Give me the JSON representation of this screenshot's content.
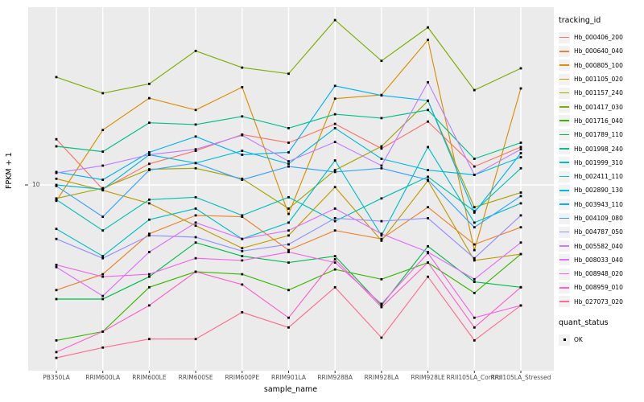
{
  "chart_data": {
    "type": "line",
    "title": "",
    "xlabel": "sample_name",
    "ylabel": "FPKM + 1",
    "x_categories": [
      "PB350LA",
      "RRIM600LA",
      "RRIM600LE",
      "RRIM600SE",
      "RRIM600PE",
      "RRIM901LA",
      "RRIM928BA",
      "RRIM928LA",
      "RRIM928LE",
      "RRII105LA_Control",
      "RRII105LA_Stressed"
    ],
    "y_axis": {
      "scale": "log10",
      "ticks": [
        10
      ],
      "tick_labels": [
        "10"
      ],
      "approx_range": [
        1.9,
        50
      ]
    },
    "legend": {
      "title": "tracking_id",
      "position": "right"
    },
    "quant_status": {
      "title": "quant_status",
      "items": [
        {
          "label": "OK",
          "marker": "black-square"
        }
      ]
    },
    "grid": "major-on",
    "series": [
      {
        "name": "Hb_000406_200",
        "color": "#F8766D",
        "values": [
          15.4,
          9.6,
          12.2,
          13.8,
          16.1,
          14.9,
          17.8,
          14.1,
          18.2,
          11.9,
          14.3
        ]
      },
      {
        "name": "Hb_000640_040",
        "color": "#EA8331",
        "values": [
          3.7,
          4.3,
          6.3,
          7.5,
          7.4,
          5.4,
          6.5,
          6.0,
          8.1,
          5.7,
          6.7
        ]
      },
      {
        "name": "Hb_000805_100",
        "color": "#D89000",
        "values": [
          8.6,
          16.8,
          22.7,
          20.3,
          25.2,
          7.6,
          22.6,
          23.4,
          39.4,
          5.4,
          24.9
        ]
      },
      {
        "name": "Hb_001105_020",
        "color": "#C09B00",
        "values": [
          10.6,
          9.5,
          8.4,
          6.8,
          5.5,
          6.2,
          9.8,
          5.9,
          10.4,
          4.9,
          5.2
        ]
      },
      {
        "name": "Hb_001157_240",
        "color": "#A3A500",
        "values": [
          8.8,
          9.7,
          11.6,
          11.7,
          10.6,
          8.0,
          11.5,
          14.4,
          22.1,
          8.1,
          9.3
        ]
      },
      {
        "name": "Hb_001417_030",
        "color": "#7CAE00",
        "values": [
          27.7,
          23.8,
          26.0,
          35.5,
          30.3,
          28.6,
          47.5,
          32.3,
          44.3,
          24.5,
          30.1
        ]
      },
      {
        "name": "Hb_001716_040",
        "color": "#39B600",
        "values": [
          2.3,
          2.5,
          3.8,
          4.4,
          4.3,
          3.7,
          4.5,
          4.1,
          4.8,
          3.6,
          5.2
        ]
      },
      {
        "name": "Hb_001789_110",
        "color": "#00BB4E",
        "values": [
          3.4,
          3.4,
          4.2,
          5.8,
          5.1,
          4.8,
          5.1,
          3.2,
          5.6,
          4.0,
          3.8
        ]
      },
      {
        "name": "Hb_001998_240",
        "color": "#00C087",
        "values": [
          14.4,
          13.7,
          18.0,
          17.7,
          19.1,
          17.1,
          19.5,
          18.8,
          20.3,
          12.8,
          14.9
        ]
      },
      {
        "name": "Hb_001999_310",
        "color": "#00C0B2",
        "values": [
          8.7,
          6.5,
          8.7,
          8.9,
          7.5,
          8.9,
          7.1,
          8.8,
          10.8,
          7.8,
          11.7
        ]
      },
      {
        "name": "Hb_002411_110",
        "color": "#00BFC4",
        "values": [
          6.6,
          5.1,
          7.2,
          8.0,
          6.0,
          7.0,
          12.6,
          6.2,
          14.3,
          7.0,
          8.4
        ]
      },
      {
        "name": "Hb_002890_130",
        "color": "#00BAD9",
        "values": [
          10.0,
          9.6,
          13.3,
          12.3,
          13.8,
          12.2,
          17.1,
          12.8,
          11.5,
          11.0,
          13.0
        ]
      },
      {
        "name": "Hb_003943_110",
        "color": "#00B2F3",
        "values": [
          11.3,
          10.5,
          13.6,
          15.8,
          13.3,
          13.6,
          25.5,
          23.3,
          22.2,
          7.7,
          13.5
        ]
      },
      {
        "name": "Hb_004109_080",
        "color": "#35A2FF",
        "values": [
          9.9,
          7.4,
          11.5,
          12.3,
          10.5,
          11.9,
          11.3,
          11.7,
          10.5,
          6.7,
          9.0
        ]
      },
      {
        "name": "Hb_004787_050",
        "color": "#9590FF",
        "values": [
          6.0,
          5.0,
          6.2,
          6.1,
          5.35,
          5.7,
          7.3,
          7.1,
          7.3,
          5.0,
          7.5
        ]
      },
      {
        "name": "Hb_005582_040",
        "color": "#BD80FF",
        "values": [
          11.2,
          12.0,
          13.3,
          14.0,
          16.0,
          12.5,
          15.0,
          12.0,
          26.4,
          11.0,
          14.0
        ]
      },
      {
        "name": "Hb_008033_040",
        "color": "#DC71FA",
        "values": [
          4.6,
          3.5,
          5.3,
          7.0,
          6.0,
          6.5,
          8.0,
          6.3,
          5.3,
          4.1,
          5.8
        ]
      },
      {
        "name": "Hb_008948_020",
        "color": "#F265E8",
        "values": [
          4.7,
          4.2,
          4.3,
          5.0,
          4.9,
          5.3,
          4.8,
          3.25,
          5.25,
          2.85,
          3.2
        ]
      },
      {
        "name": "Hb_008959_010",
        "color": "#FF61C7",
        "values": [
          2.06,
          2.5,
          3.2,
          4.4,
          3.9,
          2.85,
          4.95,
          3.15,
          4.8,
          2.6,
          3.8
        ]
      },
      {
        "name": "Hb_027073_020",
        "color": "#FF6C91",
        "values": [
          1.95,
          2.15,
          2.33,
          2.33,
          3.0,
          2.6,
          3.8,
          2.36,
          4.2,
          2.3,
          3.2
        ]
      }
    ]
  },
  "colors": {
    "panel_bg": "#EBEBEB",
    "gridline": "#FFFFFF",
    "marker": "#000000",
    "axis_text": "#4D4D4D",
    "tick_mark": "#333333",
    "legend_key_bg": "#F2F2F2"
  }
}
